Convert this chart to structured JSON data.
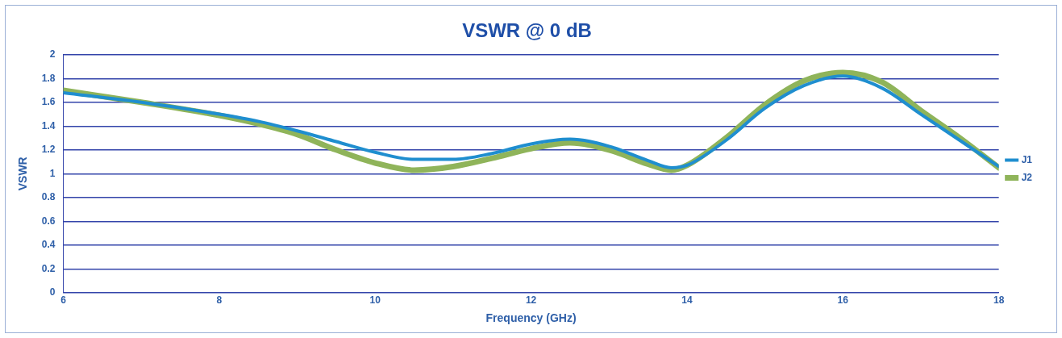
{
  "chart_data": {
    "type": "line",
    "title": "VSWR @ 0 dB",
    "xlabel": "Frequency (GHz)",
    "ylabel": "VSWR",
    "x": [
      6,
      7,
      8,
      8.5,
      9,
      9.5,
      10,
      10.5,
      11,
      11.5,
      12,
      12.5,
      13,
      13.5,
      13.8,
      14,
      14.5,
      15,
      15.5,
      16,
      16.5,
      17,
      17.5,
      18
    ],
    "series": [
      {
        "name": "J1",
        "color": "#1f8ecf",
        "values": [
          1.68,
          1.6,
          1.5,
          1.44,
          1.36,
          1.27,
          1.18,
          1.12,
          1.12,
          1.17,
          1.25,
          1.29,
          1.23,
          1.11,
          1.05,
          1.07,
          1.28,
          1.55,
          1.74,
          1.82,
          1.72,
          1.5,
          1.28,
          1.06
        ]
      },
      {
        "name": "J2",
        "color": "#8fb45a",
        "values": [
          1.7,
          1.6,
          1.49,
          1.42,
          1.33,
          1.2,
          1.09,
          1.03,
          1.06,
          1.13,
          1.21,
          1.26,
          1.2,
          1.08,
          1.03,
          1.07,
          1.3,
          1.58,
          1.78,
          1.85,
          1.77,
          1.53,
          1.3,
          1.05
        ]
      }
    ],
    "xlim": [
      6,
      18
    ],
    "xticks": [
      6,
      8,
      10,
      12,
      14,
      16,
      18
    ],
    "ylim": [
      0,
      2
    ],
    "yticks": [
      0,
      0.2,
      0.4,
      0.6,
      0.8,
      1,
      1.2,
      1.4,
      1.6,
      1.8,
      2
    ],
    "grid": "y",
    "legend": "right",
    "marker": "none",
    "line_style": "solid"
  }
}
